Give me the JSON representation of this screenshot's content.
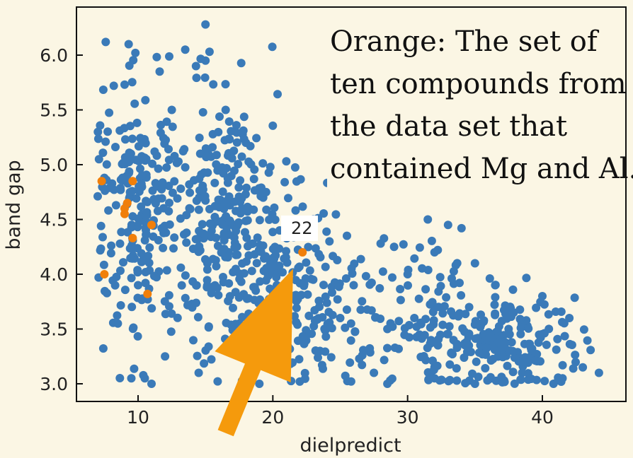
{
  "chart_data": {
    "type": "scatter",
    "title": "",
    "xlabel": "dielpredict",
    "ylabel": "band gap",
    "xlim": [
      5.5,
      45.5
    ],
    "ylim": [
      2.85,
      6.35
    ],
    "xticks": [
      10,
      20,
      30,
      40
    ],
    "yticks": [
      3.0,
      3.5,
      4.0,
      4.5,
      5.0,
      5.5,
      6.0
    ],
    "grid": false,
    "colors": {
      "blue": "#3a7ab8",
      "orange": "#f07f0a",
      "arrow": "#f59a0c",
      "frame": "#111111",
      "background": "#fbf6e4"
    },
    "annotation": {
      "lines": [
        "Orange: The set of",
        "ten compounds from",
        "the data set that",
        "contained Mg and Al."
      ],
      "placement": "top-right"
    },
    "point_label": {
      "text": "22",
      "x": 21.6,
      "y": 4.48
    },
    "blue_clusters": [
      {
        "cx": 10.0,
        "cy": 4.6,
        "sx": 1.6,
        "sy": 0.55,
        "n": 210
      },
      {
        "cx": 16.5,
        "cy": 4.55,
        "sx": 2.2,
        "sy": 0.55,
        "n": 260
      },
      {
        "cx": 21.5,
        "cy": 3.8,
        "sx": 3.0,
        "sy": 0.4,
        "n": 200
      },
      {
        "cx": 33.0,
        "cy": 3.45,
        "sx": 3.5,
        "sy": 0.35,
        "n": 190
      },
      {
        "cx": 39.0,
        "cy": 3.35,
        "sx": 2.2,
        "sy": 0.25,
        "n": 90
      }
    ],
    "blue_points": [
      [
        15.0,
        6.28
      ],
      [
        7.6,
        6.12
      ],
      [
        9.3,
        6.1
      ],
      [
        9.8,
        6.02
      ],
      [
        13.5,
        6.05
      ],
      [
        15.3,
        6.03
      ],
      [
        8.2,
        5.72
      ],
      [
        9.0,
        5.73
      ],
      [
        11.6,
        5.85
      ],
      [
        14.3,
        5.9
      ],
      [
        15.0,
        5.95
      ],
      [
        16.5,
        5.5
      ],
      [
        12.5,
        5.5
      ],
      [
        21.0,
        5.03
      ],
      [
        31.5,
        4.5
      ],
      [
        33.0,
        4.45
      ],
      [
        34.0,
        4.42
      ],
      [
        32.0,
        4.2
      ],
      [
        29.0,
        4.25
      ],
      [
        28.0,
        4.28
      ],
      [
        7.5,
        4.88
      ],
      [
        7.1,
        5.05
      ],
      [
        18.0,
        5.2
      ],
      [
        19.5,
        4.75
      ],
      [
        20.5,
        4.4
      ],
      [
        23.0,
        4.5
      ],
      [
        24.2,
        4.3
      ],
      [
        26.0,
        3.9
      ],
      [
        28.5,
        3.5
      ],
      [
        27.5,
        3.1
      ],
      [
        28.5,
        3.0
      ],
      [
        32.0,
        3.05
      ],
      [
        35.0,
        3.0
      ],
      [
        37.0,
        3.05
      ],
      [
        38.5,
        3.1
      ],
      [
        41.5,
        3.05
      ],
      [
        43.0,
        3.15
      ],
      [
        44.2,
        3.1
      ],
      [
        42.0,
        3.6
      ],
      [
        40.0,
        3.8
      ],
      [
        36.5,
        3.9
      ],
      [
        35.0,
        4.1
      ],
      [
        30.0,
        4.0
      ],
      [
        30.5,
        3.6
      ],
      [
        25.0,
        3.6
      ],
      [
        23.5,
        3.3
      ],
      [
        22.0,
        3.02
      ],
      [
        19.0,
        3.0
      ],
      [
        18.5,
        3.05
      ],
      [
        14.5,
        3.1
      ],
      [
        10.5,
        3.05
      ],
      [
        9.5,
        3.05
      ],
      [
        11.0,
        3.0
      ],
      [
        12.0,
        3.25
      ],
      [
        8.5,
        3.55
      ],
      [
        10.0,
        3.9
      ]
    ],
    "orange_points": [
      [
        7.3,
        4.85
      ],
      [
        9.6,
        4.85
      ],
      [
        9.2,
        4.65
      ],
      [
        9.0,
        4.6
      ],
      [
        9.0,
        4.55
      ],
      [
        11.0,
        4.45
      ],
      [
        9.6,
        4.33
      ],
      [
        22.2,
        4.2
      ],
      [
        7.5,
        4.0
      ],
      [
        10.7,
        3.82
      ]
    ],
    "arrow": {
      "tail": [
        16.5,
        2.55
      ],
      "head": [
        21.5,
        4.05
      ]
    }
  }
}
